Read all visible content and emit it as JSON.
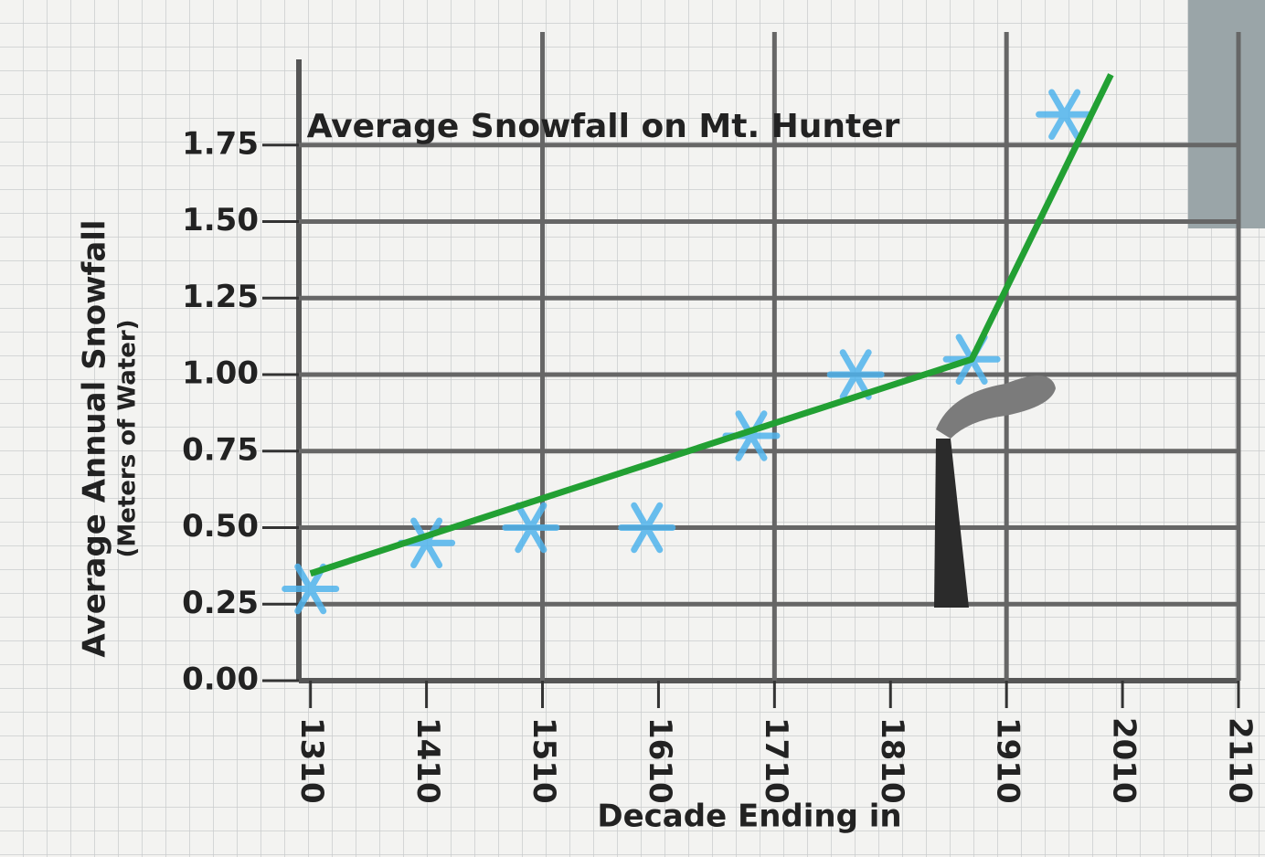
{
  "chart_data": {
    "type": "line",
    "title": "Average Snowfall on Mt. Hunter",
    "ylabel": "Average Annual Snowfall",
    "ylabel_sub": "(Meters of Water)",
    "xlabel": "Decade Ending in",
    "xlim": [
      1300,
      2110
    ],
    "xticks": [
      1310,
      1410,
      1510,
      1610,
      1710,
      1810,
      1910,
      2010,
      2110
    ],
    "ylim": [
      0,
      2
    ],
    "yticks": [
      {
        "value": 0,
        "label": "0.00"
      },
      0.25,
      {
        "value": 0.5,
        "label": "0.50"
      },
      0.75,
      {
        "value": 1,
        "label": "1.00"
      },
      1.25,
      {
        "value": 1.5,
        "label": "1.50"
      },
      1.75
    ],
    "grid": true,
    "series": [
      {
        "style": "markers",
        "color": "#4fb3ec",
        "x": [
          1310,
          1410,
          1500,
          1600,
          1690,
          1780,
          1880,
          1960
        ],
        "values": [
          0.3,
          0.45,
          0.5,
          0.5,
          0.8,
          1.0,
          1.05,
          1.85
        ]
      },
      {
        "style": "line",
        "color": "#22a033",
        "x": [
          1310,
          1880,
          2000
        ],
        "values": [
          0.35,
          1.05,
          1.98
        ]
      }
    ]
  }
}
